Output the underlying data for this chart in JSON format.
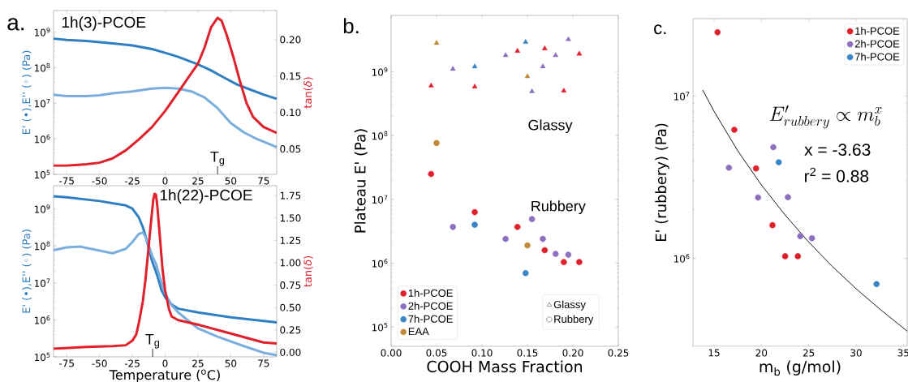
{
  "chart_data": [
    {
      "type": "line",
      "title": "a.",
      "ylabel": "E' (•),E'' (◦) (Pa)",
      "y2label": "tan(*δ*)",
      "annotations": [
        "1h(3)-PCOE",
        "T$_{g}$"
      ],
      "log": "y",
      "xlim": [
        -85,
        85
      ],
      "ylim": [
        100000.0,
        4000000000.0
      ],
      "y2lim": [
        0.015,
        0.24
      ],
      "xticks": [
        -75,
        -50,
        -25,
        0,
        25,
        50,
        75
      ],
      "yticks": [
        {
          "value": 100000.0,
          "label": "10$^{5}$"
        },
        {
          "value": 1000000.0,
          "label": "10$^{6}$"
        },
        {
          "value": 10000000.0,
          "label": "10$^{7}$"
        },
        {
          "value": 100000000.0,
          "label": "10$^{8}$"
        },
        {
          "value": 1000000000.0,
          "label": "10$^{9}$"
        }
      ],
      "y2ticks": [
        {
          "value": 0.05,
          "label": "0.05"
        },
        {
          "value": 0.1,
          "label": "0.10"
        },
        {
          "value": 0.15,
          "label": "0.15"
        },
        {
          "value": 0.2,
          "label": "0.20"
        }
      ],
      "series": [
        {
          "type": "line",
          "color": "#2f7fc1",
          "x": [
            -85,
            -75,
            -60,
            -50,
            -40,
            -25,
            -10,
            0,
            10,
            25,
            35,
            45,
            55,
            65,
            75,
            85
          ],
          "values": [
            650000000.0,
            600000000.0,
            560000000.0,
            520000000.0,
            480000000.0,
            420000000.0,
            330000000.0,
            260000000.0,
            200000000.0,
            123000000.0,
            83000000.0,
            52000000.0,
            33000000.0,
            24000000.0,
            17400000.0,
            13200000.0
          ]
        },
        {
          "type": "line",
          "color": "#7aaedc",
          "x": [
            -85,
            -75,
            -60,
            -50,
            -40,
            -25,
            -10,
            0,
            10,
            20,
            30,
            40,
            50,
            60,
            70,
            85
          ],
          "values": [
            17400000.0,
            15800000.0,
            15800000.0,
            16600000.0,
            19000000.0,
            21400000.0,
            25700000.0,
            26900000.0,
            25700000.0,
            21400000.0,
            14500000.0,
            7200000.0,
            2750000.0,
            1510000.0,
            980000.0,
            580000.0
          ]
        },
        {
          "type": "line",
          "axis": "y2",
          "color": "#e0202a",
          "x": [
            -85,
            -75,
            -60,
            -50,
            -40,
            -30,
            -20,
            -10,
            0,
            10,
            20,
            25,
            30,
            35,
            40,
            43,
            47,
            52,
            57,
            62,
            67,
            75,
            85
          ],
          "values": [
            0.027,
            0.027,
            0.029,
            0.031,
            0.037,
            0.048,
            0.063,
            0.08,
            0.102,
            0.128,
            0.154,
            0.167,
            0.189,
            0.217,
            0.23,
            0.226,
            0.206,
            0.176,
            0.143,
            0.113,
            0.094,
            0.08,
            0.072
          ]
        }
      ]
    },
    {
      "type": "line",
      "xlabel": "Temperature ($^{o}$C)",
      "ylabel": "E' (•),E'' (◦) (Pa)",
      "y2label": "tan(*δ*)",
      "annotations": [
        "1h(22)-PCOE",
        "T$_{g}$"
      ],
      "log": "y",
      "xlim": [
        -85,
        85
      ],
      "ylim": [
        100000.0,
        4200000000.0
      ],
      "y2lim": [
        -0.05,
        1.86
      ],
      "xticks": [
        -75,
        -50,
        -25,
        0,
        25,
        50,
        75
      ],
      "yticks": [
        {
          "value": 100000.0,
          "label": "10$^{5}$"
        },
        {
          "value": 1000000.0,
          "label": "10$^{6}$"
        },
        {
          "value": 10000000.0,
          "label": "10$^{7}$"
        },
        {
          "value": 100000000.0,
          "label": "10$^{8}$"
        },
        {
          "value": 1000000000.0,
          "label": "10$^{9}$"
        }
      ],
      "y2ticks": [
        {
          "value": 0,
          "label": "0.00"
        },
        {
          "value": 0.25,
          "label": "0.25"
        },
        {
          "value": 0.5,
          "label": "0.50"
        },
        {
          "value": 0.75,
          "label": "0.75"
        },
        {
          "value": 1,
          "label": "1.00"
        },
        {
          "value": 1.25,
          "label": "1.25"
        },
        {
          "value": 1.5,
          "label": "1.50"
        },
        {
          "value": 1.75,
          "label": "1.75"
        }
      ],
      "series": [
        {
          "type": "line",
          "color": "#2f7fc1",
          "x": [
            -85,
            -75,
            -50,
            -30,
            -25,
            -20,
            -17,
            -15,
            -12,
            -10,
            -7,
            -5,
            -3,
            0,
            5,
            10,
            25,
            50,
            75,
            85
          ],
          "values": [
            2190000000.0,
            2040000000.0,
            1620000000.0,
            1230000000.0,
            1020000000.0,
            580000000.0,
            320000000.0,
            190000000.0,
            76000000.0,
            39000000.0,
            20000000.0,
            12000000.0,
            6600000.0,
            4100000.0,
            2600000.0,
            2000000.0,
            1580000.0,
            1170000.0,
            930000.0,
            850000.0
          ]
        },
        {
          "type": "line",
          "color": "#7aaedc",
          "x": [
            -85,
            -75,
            -65,
            -50,
            -40,
            -30,
            -25,
            -20,
            -17,
            -15,
            -12,
            -10,
            -7,
            -4,
            0,
            5,
            10,
            20,
            25,
            40,
            60,
            75,
            85
          ],
          "values": [
            76000000.0,
            91000000.0,
            95000000.0,
            74000000.0,
            63000000.0,
            83000000.0,
            126000000.0,
            210000000.0,
            230000000.0,
            178000000.0,
            91000000.0,
            55000000.0,
            33000000.0,
            14100000.0,
            5200000.0,
            2450000.0,
            1580000.0,
            810000.0,
            590000.0,
            350000.0,
            195000.0,
            129000.0,
            110000.0
          ]
        },
        {
          "type": "line",
          "axis": "y2",
          "color": "#e0202a",
          "x": [
            -85,
            -60,
            -40,
            -30,
            -25,
            -22,
            -20,
            -17,
            -15,
            -13,
            -11,
            -9,
            -8,
            -7,
            -6,
            -4,
            -2,
            0,
            3,
            5,
            10,
            25,
            50,
            75,
            85
          ],
          "values": [
            0.04,
            0.06,
            0.07,
            0.08,
            0.13,
            0.2,
            0.33,
            0.57,
            0.81,
            1.11,
            1.42,
            1.71,
            1.77,
            1.76,
            1.64,
            1.29,
            0.93,
            0.69,
            0.48,
            0.4,
            0.36,
            0.31,
            0.21,
            0.11,
            0.1
          ]
        }
      ]
    },
    {
      "type": "scatter",
      "title": "b.",
      "xlabel": "COOH Mass Fraction",
      "ylabel": "Plateau E' (Pa)",
      "annotations": [
        "Glassy",
        "Rubbery",
        "Glassy",
        "Rubbery"
      ],
      "log": "y",
      "legend": "bottom left",
      "xlim": [
        0,
        0.25
      ],
      "ylim": [
        50000.0,
        7600000000.0
      ],
      "xticks": [
        {
          "value": 0,
          "label": "0.00"
        },
        {
          "value": 0.05,
          "label": "0.05"
        },
        {
          "value": 0.1,
          "label": "0.10"
        },
        {
          "value": 0.15,
          "label": "0.15"
        },
        {
          "value": 0.2,
          "label": "0.20"
        },
        {
          "value": 0.25,
          "label": "0.25"
        }
      ],
      "yticks": [
        {
          "value": 100000.0,
          "label": "10$^{5}$"
        },
        {
          "value": 1000000.0,
          "label": "10$^{6}$"
        },
        {
          "value": 10000000.0,
          "label": "10$^{7}$"
        },
        {
          "value": 100000000.0,
          "label": "10$^{8}$"
        },
        {
          "value": 1000000000.0,
          "label": "10$^{9}$"
        }
      ],
      "series": [
        {
          "name": "1h-PCOE",
          "color": "#e0202a",
          "marker": "circle",
          "x": [
            0.044,
            0.092,
            0.139,
            0.169,
            0.19,
            0.207
          ],
          "values": [
            25000000.0,
            6300000.0,
            3700000.0,
            1600000.0,
            1040000.0,
            1040000.0
          ]
        },
        {
          "name": "2h-PCOE",
          "color": "#8e6fbf",
          "marker": "circle",
          "x": [
            0.068,
            0.126,
            0.155,
            0.167,
            0.181,
            0.195
          ],
          "values": [
            3700000.0,
            2400000.0,
            4900000.0,
            2400000.0,
            1400000.0,
            1360000.0
          ]
        },
        {
          "name": "7h-PCOE",
          "color": "#3a87c8",
          "marker": "circle",
          "x": [
            0.092,
            0.148
          ],
          "values": [
            4000000.0,
            700000.0
          ]
        },
        {
          "name": "EAA",
          "color": "#c08a3a",
          "marker": "circle",
          "x": [
            0.05,
            0.15
          ],
          "values": [
            76000000.0,
            1900000.0
          ]
        },
        {
          "color": "#e0202a",
          "marker": "triangle",
          "x": [
            0.044,
            0.092,
            0.139,
            0.169,
            0.19,
            0.207
          ],
          "values": [
            600000000.0,
            580000000.0,
            2100000000.0,
            2300000000.0,
            500000000.0,
            1900000000.0
          ]
        },
        {
          "color": "#8e6fbf",
          "marker": "triangle",
          "x": [
            0.068,
            0.126,
            0.155,
            0.167,
            0.181,
            0.195
          ],
          "values": [
            1100000000.0,
            1800000000.0,
            490000000.0,
            1200000000.0,
            1800000000.0,
            3200000000.0
          ]
        },
        {
          "color": "#3a87c8",
          "marker": "triangle",
          "x": [
            0.092,
            0.148
          ],
          "values": [
            1200000000.0,
            2900000000.0
          ]
        },
        {
          "color": "#c08a3a",
          "marker": "triangle",
          "x": [
            0.05,
            0.15
          ],
          "values": [
            2800000000.0,
            840000000.0
          ]
        }
      ]
    },
    {
      "type": "scatter",
      "title": "c.",
      "xlabel": "m$_{b}$ (g/mol)",
      "ylabel": "E' (rubbery) (Pa)",
      "annotations": [
        "E'_{rubbery} \\propto m_b^x",
        "x = -3.63",
        "r$^{2}$ = 0.88"
      ],
      "log": "y",
      "legend": "top right",
      "marker": "circle",
      "xlim": [
        12.77,
        35.4
      ],
      "ylim": [
        287000.0,
        30000000.0
      ],
      "xticks": [
        15,
        20,
        25,
        30,
        35
      ],
      "yticks": [
        {
          "value": 1000000.0,
          "label": "10$^{6}$"
        },
        {
          "value": 10000000.0,
          "label": "10$^{7}$"
        }
      ],
      "series": [
        {
          "name": "1h-PCOE",
          "color": "#e0202a",
          "x": [
            15.37,
            17.14,
            19.43,
            21.17,
            22.51,
            23.85
          ],
          "values": [
            24700000.0,
            6200000.0,
            3580000.0,
            1600000.0,
            1030000.0,
            1030000.0
          ]
        },
        {
          "name": "2h-PCOE",
          "color": "#8e6fbf",
          "x": [
            16.57,
            21.26,
            19.65,
            22.8,
            24.11,
            25.34
          ],
          "values": [
            3620000.0,
            4840000.0,
            2370000.0,
            2380000.0,
            1370000.0,
            1330000.0
          ]
        },
        {
          "name": "7h-PCOE",
          "color": "#3a87c8",
          "x": [
            21.83,
            32.16
          ],
          "values": [
            3910000.0,
            693000.0
          ]
        },
        {
          "type": "line",
          "color": "#000000",
          "marker": "none",
          "x": [
            13.8,
            15,
            17.5,
            20,
            22.5,
            25,
            27.5,
            30,
            32.5,
            35.4
          ],
          "values": [
            10900000.0,
            8050000.0,
            4600000.0,
            2830000.0,
            1850000.0,
            1260000.0,
            890000.0,
            650000.0,
            487000.0,
            356000.0
          ]
        }
      ]
    }
  ]
}
